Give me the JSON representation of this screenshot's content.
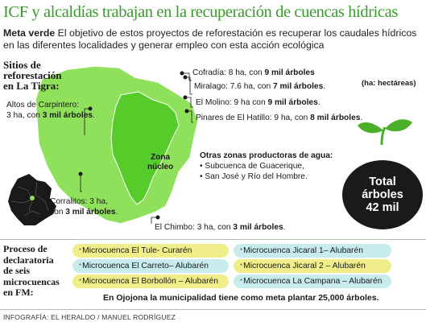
{
  "title": "ICF y alcaldías trabajan en la recuperación de cuencas hídricas",
  "intro": {
    "lead": "Meta verde",
    "text": " El objetivo de estos proyectos de reforestación es recuperar los caudales hídricos en las diferentes localidades y generar empleo con esta acción ecológica"
  },
  "map": {
    "sitios_title_1": "Sitios de",
    "sitios_title_2": "reforestación",
    "sitios_title_3": "en La Tigra:",
    "unit": "(ha: hectáreas)",
    "zona_1": "Zona",
    "zona_2": "núcleo",
    "colors": {
      "outer": "#8fe05a",
      "core": "#55cc2a",
      "outline": "#ffffff",
      "sprout": "#4caf2a",
      "dept": "#1a1a1a"
    },
    "sites": [
      {
        "name": "Cofradía: 8 ha, con ",
        "trees": "9 mil árboles",
        "end": ""
      },
      {
        "name": "Miralago: 7.6 ha, con ",
        "trees": "7 mil árboles",
        "end": "."
      },
      {
        "name": "El Molino: 9 ha con ",
        "trees": "9 mil árboles",
        "end": "."
      },
      {
        "name": "Pinares de El Hatillo: 9 ha, con ",
        "trees": "8 mil árboles",
        "end": "."
      },
      {
        "name_1": "Altos de Carpintero:",
        "name_2": "3 ha, con ",
        "trees": "3 mil árboles",
        "end": "."
      },
      {
        "name_1": "Corralitos: 3 ha,",
        "name_2": "con ",
        "trees": "3 mil árboles",
        "end": "."
      },
      {
        "name": "El Chimbo: 3 ha, con ",
        "trees": "3 mil árboles",
        "end": "."
      }
    ],
    "otras": {
      "heading": "Otras zonas productoras de agua:",
      "items": [
        "• Subcuenca de Guacerique,",
        "• San José y Río del Hombre."
      ]
    },
    "total": {
      "line1": "Total",
      "line2": "árboles",
      "line3": "42 mil"
    }
  },
  "proceso": {
    "title_lines": [
      "Proceso de",
      "declaratoria",
      "de seis",
      "microcuencas",
      "en FM:"
    ],
    "star": "*",
    "left": [
      "Microcuenca El Tule-  Curarén",
      "Microcuenca El Carreto– Alubarén",
      "Microcuenca El Borbollón – Alubarén"
    ],
    "right": [
      "Microcuenca Jicaral 1– Alubarén",
      "Microcuenca Jicaral 2 – Alubarén",
      "Microcuenca La Campana – Alubarén"
    ],
    "ojojona": "En Ojojona la municipalidad tiene como meta plantar 25,000 árboles."
  },
  "credit": "INFOGRAFÍA: EL HERALDO / MANUEL RODRÍGUEZ"
}
